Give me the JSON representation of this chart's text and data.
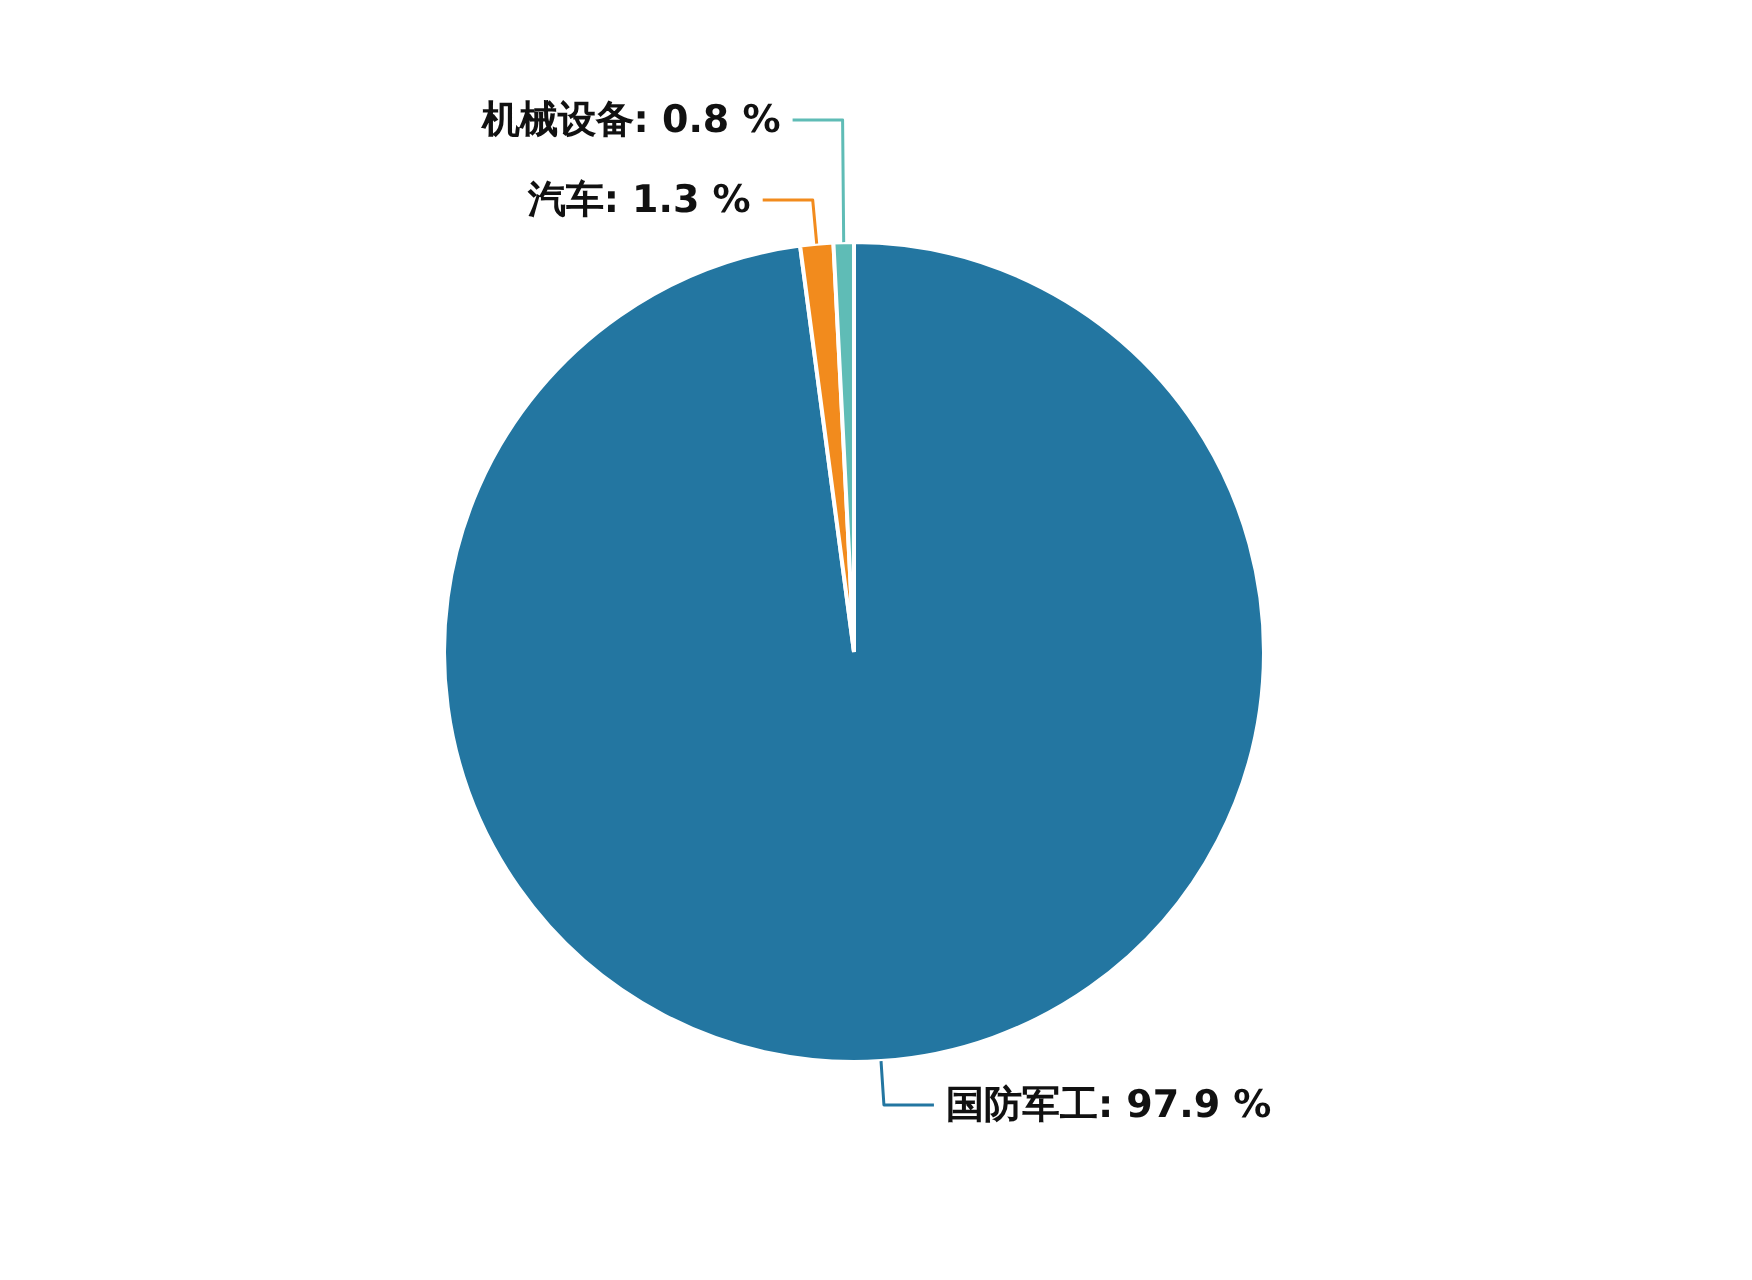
{
  "chart_data": {
    "type": "pie",
    "categories": [
      "国防军工",
      "汽车",
      "机械设备"
    ],
    "values": [
      97.9,
      1.3,
      0.8
    ],
    "value_labels": [
      "97.9 %",
      "1.3 %",
      "0.8 %"
    ],
    "colors": [
      "#2376a1",
      "#f28b1d",
      "#5fbcb6"
    ]
  }
}
